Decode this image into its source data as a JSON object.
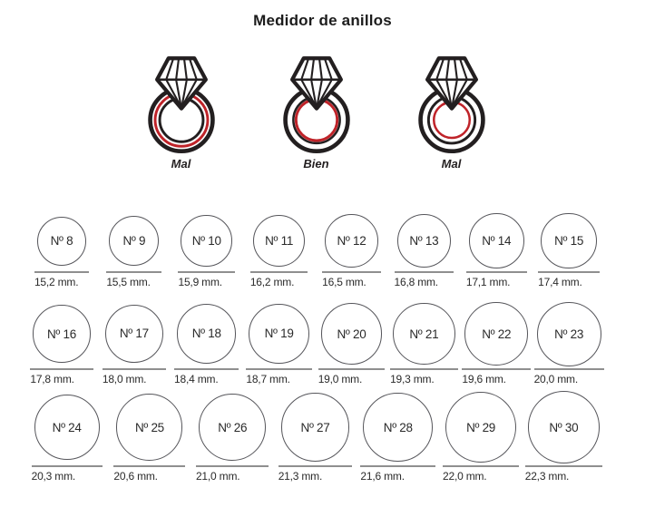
{
  "title": "Medidor de anillos",
  "fit_examples": [
    {
      "label": "Mal"
    },
    {
      "label": "Bien"
    },
    {
      "label": "Mal"
    }
  ],
  "colors": {
    "red": "#bf2329",
    "ink": "#231f20",
    "circle_outline": "#55555a",
    "line_gray": "#8f8f8f"
  },
  "size_rows": [
    {
      "items": [
        {
          "label": "Nº 8",
          "mm_label": "15,2 mm.",
          "mm": 15.2
        },
        {
          "label": "Nº 9",
          "mm_label": "15,5 mm.",
          "mm": 15.5
        },
        {
          "label": "Nº 10",
          "mm_label": "15,9 mm.",
          "mm": 15.9
        },
        {
          "label": "Nº 11",
          "mm_label": "16,2 mm.",
          "mm": 16.2
        },
        {
          "label": "Nº 12",
          "mm_label": "16,5 mm.",
          "mm": 16.5
        },
        {
          "label": "Nº 13",
          "mm_label": "16,8 mm.",
          "mm": 16.8
        },
        {
          "label": "Nº 14",
          "mm_label": "17,1 mm.",
          "mm": 17.1
        },
        {
          "label": "Nº 15",
          "mm_label": "17,4 mm.",
          "mm": 17.4
        }
      ]
    },
    {
      "items": [
        {
          "label": "Nº 16",
          "mm_label": "17,8 mm.",
          "mm": 17.8
        },
        {
          "label": "Nº 17",
          "mm_label": "18,0 mm.",
          "mm": 18.0
        },
        {
          "label": "Nº 18",
          "mm_label": "18,4 mm.",
          "mm": 18.4
        },
        {
          "label": "Nº 19",
          "mm_label": "18,7 mm.",
          "mm": 18.7
        },
        {
          "label": "Nº 20",
          "mm_label": "19,0 mm.",
          "mm": 19.0
        },
        {
          "label": "Nº 21",
          "mm_label": "19,3 mm.",
          "mm": 19.3
        },
        {
          "label": "Nº 22",
          "mm_label": "19,6 mm.",
          "mm": 19.6
        },
        {
          "label": "Nº 23",
          "mm_label": "20,0 mm.",
          "mm": 20.0
        }
      ]
    },
    {
      "items": [
        {
          "label": "Nº 24",
          "mm_label": "20,3 mm.",
          "mm": 20.3
        },
        {
          "label": "Nº 25",
          "mm_label": "20,6 mm.",
          "mm": 20.6
        },
        {
          "label": "Nº 26",
          "mm_label": "21,0 mm.",
          "mm": 21.0
        },
        {
          "label": "Nº 27",
          "mm_label": "21,3 mm.",
          "mm": 21.3
        },
        {
          "label": "Nº 28",
          "mm_label": "21,6 mm.",
          "mm": 21.6
        },
        {
          "label": "Nº 29",
          "mm_label": "22,0 mm.",
          "mm": 22.0
        },
        {
          "label": "Nº 30",
          "mm_label": "22,3 mm.",
          "mm": 22.3
        }
      ]
    }
  ]
}
